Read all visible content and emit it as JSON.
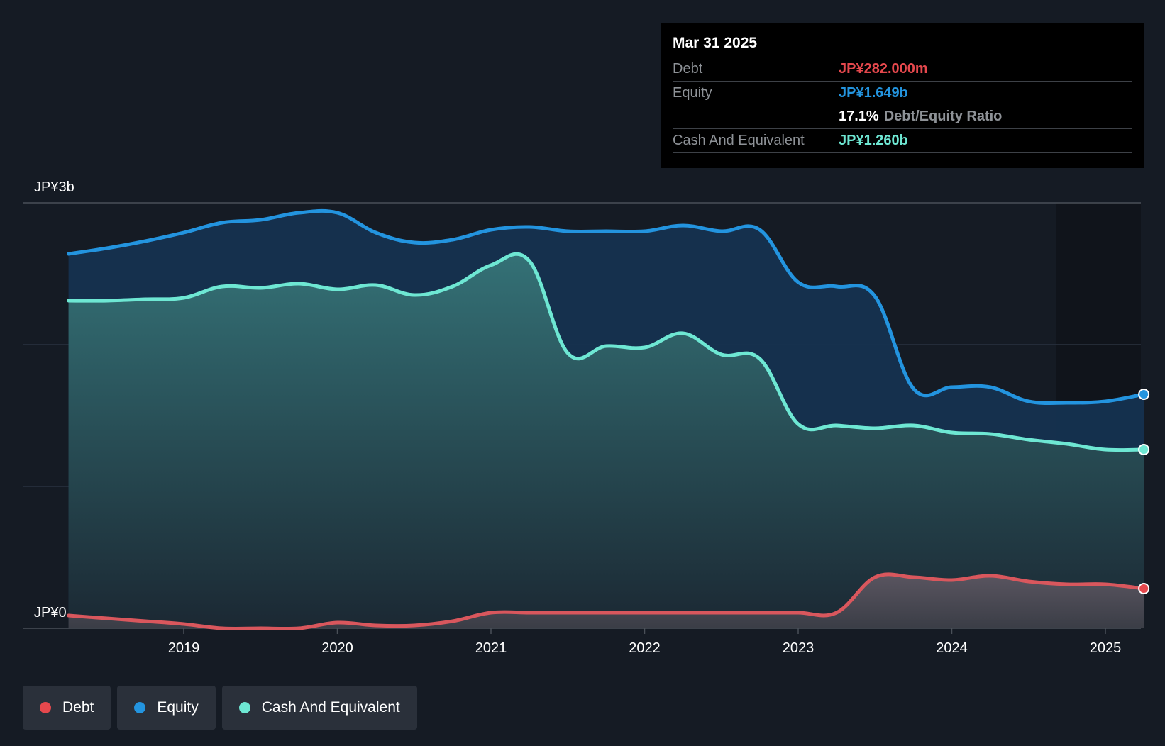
{
  "colors": {
    "debt": "#e5484d",
    "equity": "#2394df",
    "cash": "#6ee7d3",
    "background": "#151b24"
  },
  "tooltip": {
    "date": "Mar 31 2025",
    "rows": [
      {
        "label": "Debt",
        "value": "JP¥282.000m"
      },
      {
        "label": "Equity",
        "value": "JP¥1.649b"
      },
      {
        "ratio_value": "17.1%",
        "ratio_label": "Debt/Equity Ratio"
      },
      {
        "label": "Cash And Equivalent",
        "value": "JP¥1.260b"
      }
    ]
  },
  "legend": [
    {
      "label": "Debt",
      "color_key": "debt"
    },
    {
      "label": "Equity",
      "color_key": "equity"
    },
    {
      "label": "Cash And Equivalent",
      "color_key": "cash"
    }
  ],
  "chart_data": {
    "type": "area",
    "title": "",
    "xlabel": "",
    "ylabel": "",
    "y_tick_labels": [
      "JP¥3b",
      "JP¥0"
    ],
    "x_tick_labels": [
      "2019",
      "2020",
      "2021",
      "2022",
      "2023",
      "2024",
      "2025"
    ],
    "ylim": [
      0,
      3
    ],
    "xlim": [
      2018.0,
      2025.25
    ],
    "grid": true,
    "legend_position": "bottom-left",
    "x": [
      2018.25,
      2018.5,
      2018.75,
      2019.0,
      2019.25,
      2019.5,
      2019.75,
      2020.0,
      2020.25,
      2020.5,
      2020.75,
      2021.0,
      2021.25,
      2021.5,
      2021.75,
      2022.0,
      2022.25,
      2022.5,
      2022.75,
      2023.0,
      2023.25,
      2023.5,
      2023.75,
      2024.0,
      2024.25,
      2024.5,
      2024.75,
      2025.0,
      2025.25
    ],
    "series": [
      {
        "name": "Equity",
        "values": [
          2.64,
          2.68,
          2.73,
          2.79,
          2.86,
          2.88,
          2.93,
          2.93,
          2.79,
          2.72,
          2.74,
          2.81,
          2.83,
          2.8,
          2.8,
          2.8,
          2.84,
          2.8,
          2.81,
          2.44,
          2.41,
          2.34,
          1.69,
          1.7,
          1.7,
          1.6,
          1.59,
          1.6,
          1.65
        ]
      },
      {
        "name": "Cash And Equivalent",
        "values": [
          2.31,
          2.31,
          2.32,
          2.33,
          2.41,
          2.4,
          2.43,
          2.39,
          2.42,
          2.35,
          2.41,
          2.56,
          2.59,
          1.94,
          1.99,
          1.98,
          2.08,
          1.93,
          1.9,
          1.44,
          1.43,
          1.41,
          1.43,
          1.38,
          1.37,
          1.33,
          1.3,
          1.26,
          1.26
        ]
      },
      {
        "name": "Debt",
        "values": [
          0.09,
          0.07,
          0.05,
          0.03,
          0.0,
          0.0,
          0.0,
          0.04,
          0.02,
          0.02,
          0.05,
          0.11,
          0.11,
          0.11,
          0.11,
          0.11,
          0.11,
          0.11,
          0.11,
          0.11,
          0.11,
          0.36,
          0.36,
          0.34,
          0.37,
          0.33,
          0.31,
          0.31,
          0.28
        ]
      }
    ]
  }
}
